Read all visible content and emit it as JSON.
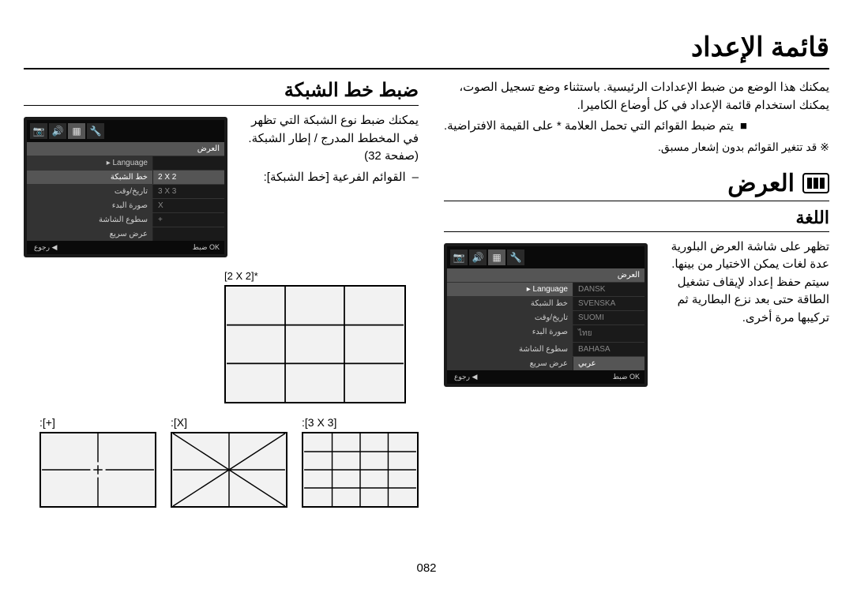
{
  "page_number": "082",
  "main_title": "قائمة الإعداد",
  "right": {
    "intro": "يمكنك هذا الوضع من ضبط الإعدادات الرئيسية. باستثناء وضع تسجيل الصوت، يمكنك استخدام قائمة الإعداد في كل أوضاع الكاميرا.",
    "bullet": "يتم ضبط القوائم التي تحمل العلامة * على القيمة الافتراضية.",
    "note": "قد تتغير القوائم بدون إشعار مسبق.",
    "note_mark": "※",
    "display_title": "العرض",
    "lang_title": "اللغة",
    "lang_para": "تظهر على شاشة العرض البلورية عدة لغات يمكن الاختيار من بينها. سيتم حفظ إعداد لإيقاف تشغيل الطاقة حتى بعد نزع البطارية ثم تركيبها مرة أخرى."
  },
  "left": {
    "grid_title": "ضبط خط الشبكة",
    "grid_para": "يمكنك ضبط نوع الشبكة التي تظهر في المخطط المدرج / إطار الشبكة. (صفحة 32)",
    "submenu_label": "القوائم الفرعية [خط الشبكة]:",
    "grid_2x2": "[2 X 2]*",
    "grid_3x3": ":[3 X 3]",
    "grid_x": ":[X]",
    "grid_plus": ":[+]"
  },
  "lcd": {
    "banner": "العرض",
    "rows_left": [
      {
        "lbl": "Language",
        "val": "",
        "arrow": "▸"
      },
      {
        "lbl": "خط الشبكة",
        "val": "2 X 2",
        "hl": true,
        "sel": true
      },
      {
        "lbl": "تاريخ/وقت",
        "val": "3 X 3"
      },
      {
        "lbl": "صورة البدء",
        "val": "X"
      },
      {
        "lbl": "سطوع الشاشة",
        "val": "+"
      },
      {
        "lbl": "عرض سريع",
        "val": ""
      }
    ],
    "rows_right": [
      {
        "lbl": "Language",
        "val": "DANSK",
        "arrow": "▸",
        "hl": true
      },
      {
        "lbl": "خط الشبكة",
        "val": "SVENSKA"
      },
      {
        "lbl": "تاريخ/وقت",
        "val": "SUOMI"
      },
      {
        "lbl": "صورة البدء",
        "val": "ไทย"
      },
      {
        "lbl": "سطوع الشاشة",
        "val": "BAHASA"
      },
      {
        "lbl": "عرض سريع",
        "val": "عربي",
        "sel": true
      }
    ],
    "footer_set": "ضبط",
    "footer_ok": "OK",
    "footer_back": "رجوع",
    "tabs": [
      "📷",
      "🔊",
      "▦",
      "🔧"
    ]
  },
  "colors": {
    "lcd_bg": "#1a1a1a",
    "lcd_row_bg": "#333333",
    "lcd_hl": "#555555",
    "border": "#000000"
  }
}
